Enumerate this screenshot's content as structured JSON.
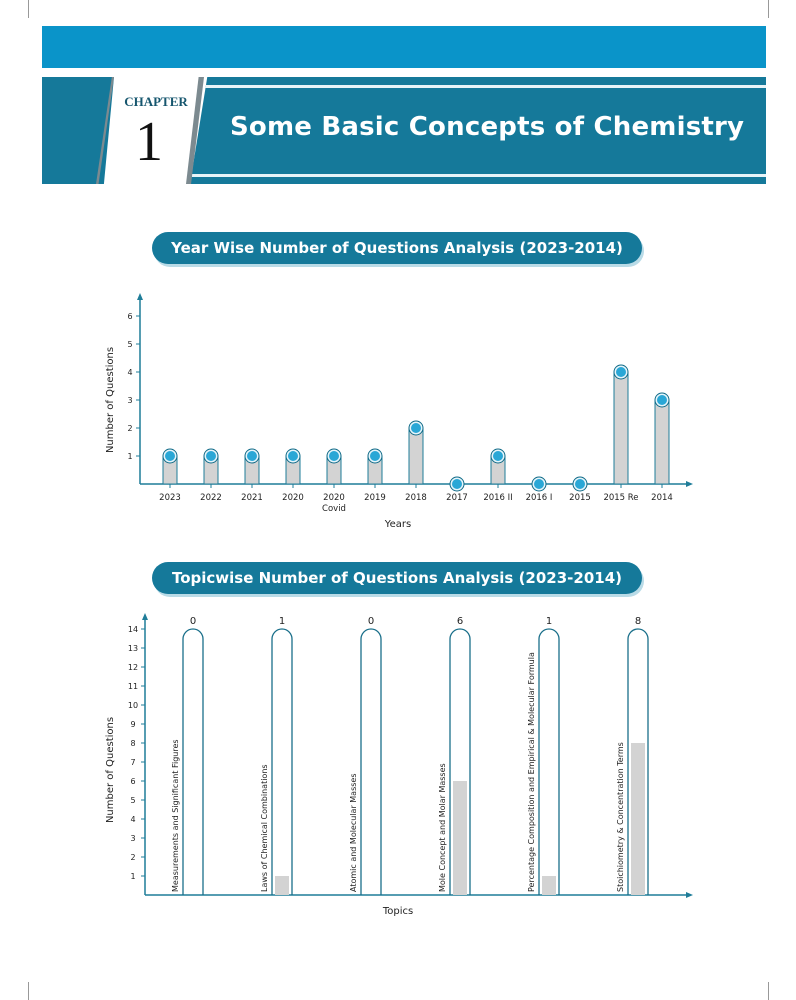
{
  "header": {
    "chapter_label": "CHAPTER",
    "chapter_number": "1",
    "title": "Some Basic Concepts of Chemistry"
  },
  "colors": {
    "top_bar": "#0a94c9",
    "banner": "#15799a",
    "axis": "#1f7d99",
    "bar_fill": "#d3d3d3",
    "marker": "#2aa7d6"
  },
  "chart_data": [
    {
      "type": "bar",
      "title": "Year Wise Number of Questions Analysis (2023-2014)",
      "xlabel": "Years",
      "ylabel": "Number of Questions",
      "categories": [
        "2023",
        "2022",
        "2021",
        "2020",
        "2020\nCovid",
        "2019",
        "2018",
        "2017",
        "2016 II",
        "2016 I",
        "2015",
        "2015 Re",
        "2014"
      ],
      "values": [
        1,
        1,
        1,
        1,
        1,
        1,
        2,
        0,
        1,
        0,
        0,
        4,
        3
      ],
      "yticks": [
        1,
        2,
        3,
        4,
        5,
        6
      ],
      "ylim": [
        0,
        6.5
      ],
      "markers": "circle-on-top",
      "grid": false
    },
    {
      "type": "bar",
      "title": "Topicwise Number of Questions Analysis (2023-2014)",
      "xlabel": "Topics",
      "ylabel": "Number of Questions",
      "categories": [
        "Measurements and Significant Figures",
        "Laws of Chemical Combinations",
        "Atomic and Molecular Masses",
        "Mole Concept and Molar Masses",
        "Percentage Composition and Empirical & Molecular Formula",
        "Stoichiometry & Concentration Terms"
      ],
      "values": [
        0,
        1,
        0,
        6,
        1,
        8
      ],
      "data_labels": [
        "0",
        "1",
        "0",
        "6",
        "1",
        "8"
      ],
      "yticks": [
        1,
        2,
        3,
        4,
        5,
        6,
        7,
        8,
        9,
        10,
        11,
        12,
        13,
        14
      ],
      "ylim": [
        0,
        14
      ],
      "style": "test-tube",
      "grid": false
    }
  ]
}
